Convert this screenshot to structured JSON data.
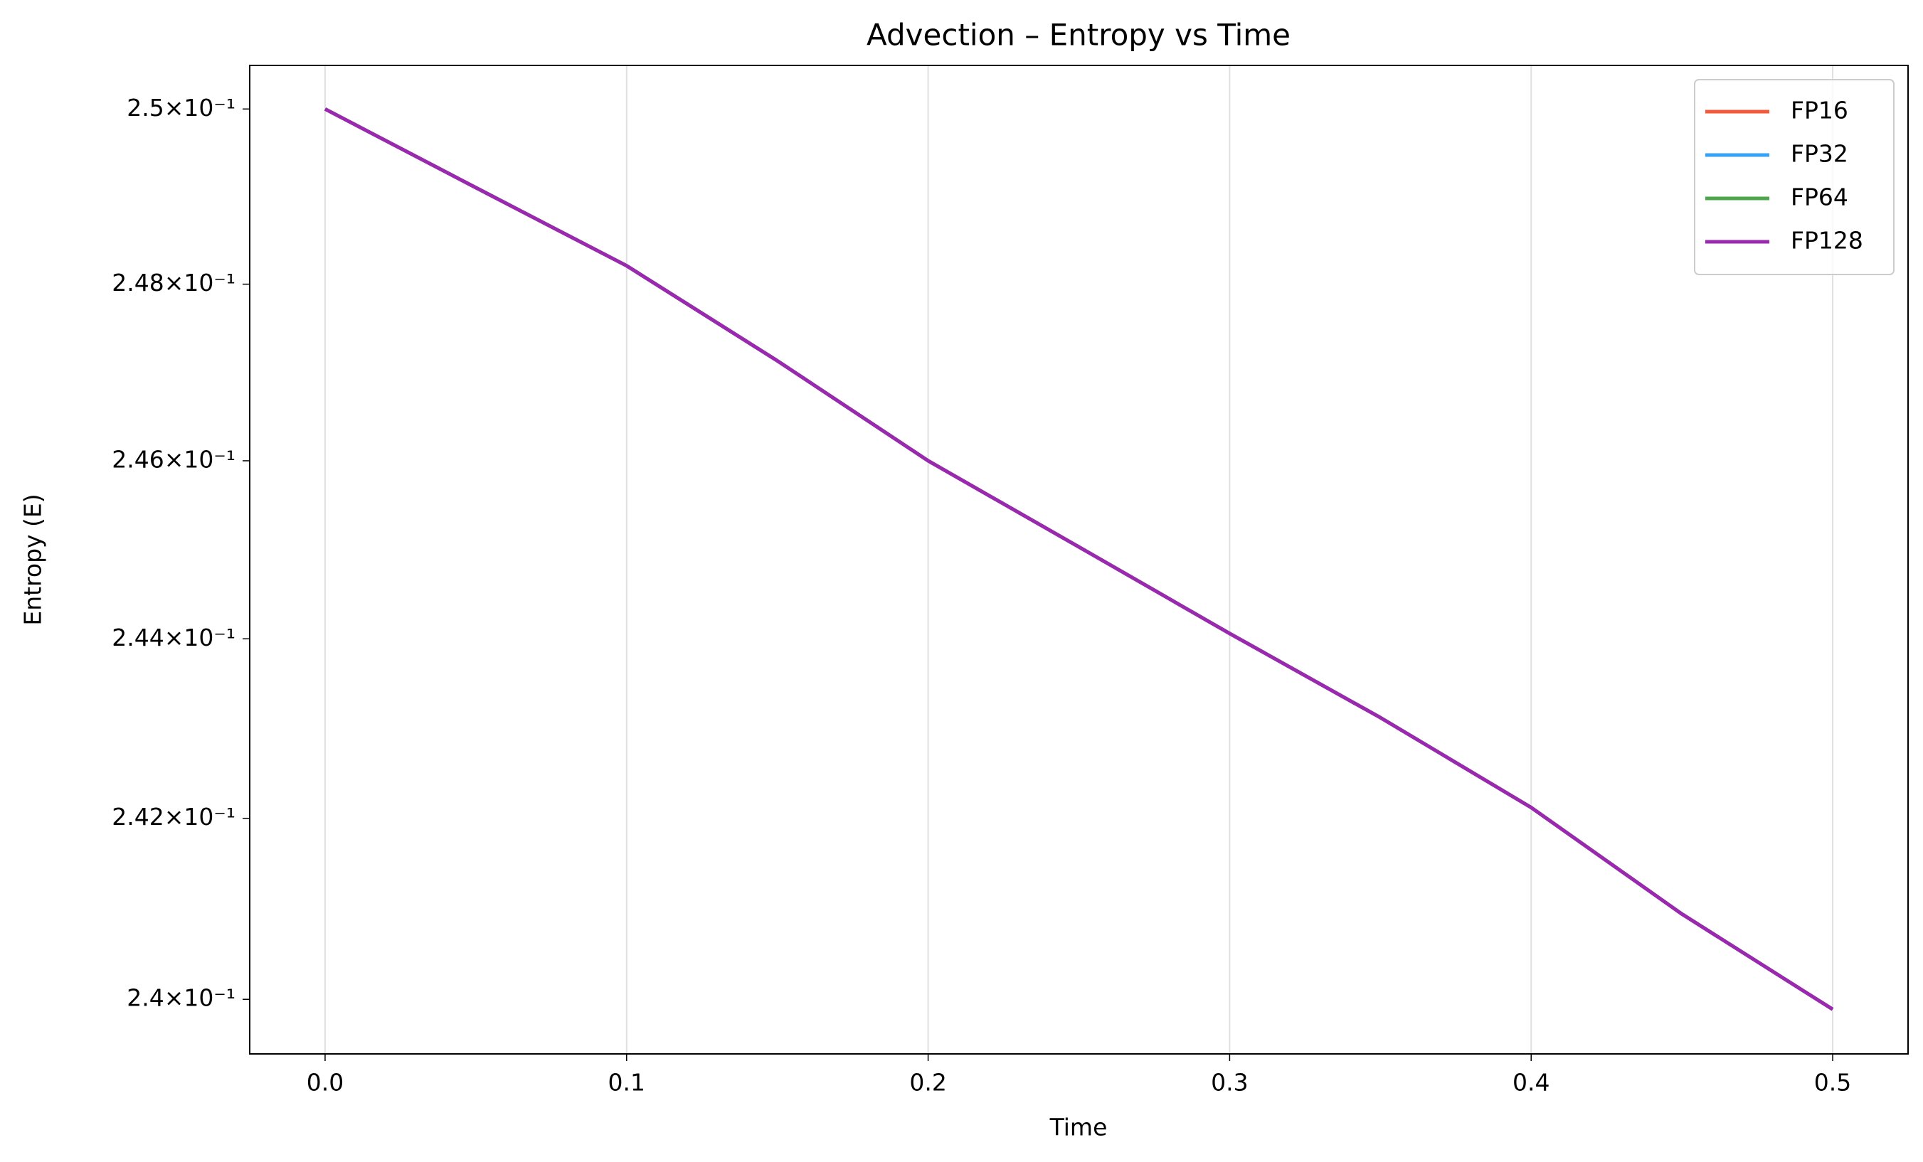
{
  "chart_data": {
    "type": "line",
    "title": "Advection – Entropy vs Time",
    "xlabel": "Time",
    "ylabel": "Entropy (E)",
    "x": [
      0,
      0.05,
      0.1,
      0.15,
      0.2,
      0.25,
      0.3,
      0.35,
      0.4,
      0.45,
      0.5
    ],
    "series": [
      {
        "name": "FP16",
        "color": "#f4593a",
        "values": [
          0.25,
          0.2491,
          0.24821,
          0.24713,
          0.246,
          0.24503,
          0.24406,
          0.24312,
          0.24212,
          0.24094,
          0.23989
        ]
      },
      {
        "name": "FP32",
        "color": "#36a2f5",
        "values": [
          0.25,
          0.2491,
          0.24821,
          0.24713,
          0.246,
          0.24503,
          0.24406,
          0.24312,
          0.24212,
          0.24094,
          0.23989
        ]
      },
      {
        "name": "FP64",
        "color": "#4ca64c",
        "values": [
          0.25,
          0.2491,
          0.24821,
          0.24713,
          0.246,
          0.24503,
          0.24406,
          0.24312,
          0.24212,
          0.24094,
          0.23989
        ]
      },
      {
        "name": "FP128",
        "color": "#9c27b0",
        "values": [
          0.25,
          0.2491,
          0.24821,
          0.24713,
          0.246,
          0.24503,
          0.24406,
          0.24312,
          0.24212,
          0.24094,
          0.23989
        ]
      }
    ],
    "xlim": [
      -0.025,
      0.525
    ],
    "xticks": [
      {
        "value": 0,
        "label": "0.0"
      },
      0.1,
      0.2,
      0.3,
      0.4,
      0.5
    ],
    "ylim": [
      0.2394,
      0.2505
    ],
    "ylog": true,
    "yticks": [
      {
        "value": 0.24,
        "label": "2.4×10⁻¹"
      },
      {
        "value": 0.242,
        "label": "2.42×10⁻¹"
      },
      {
        "value": 0.244,
        "label": "2.44×10⁻¹"
      },
      {
        "value": 0.246,
        "label": "2.46×10⁻¹"
      },
      {
        "value": 0.248,
        "label": "2.48×10⁻¹"
      },
      {
        "value": 0.25,
        "label": "2.5×10⁻¹"
      }
    ],
    "xgrid": true,
    "legend": "upper right"
  }
}
